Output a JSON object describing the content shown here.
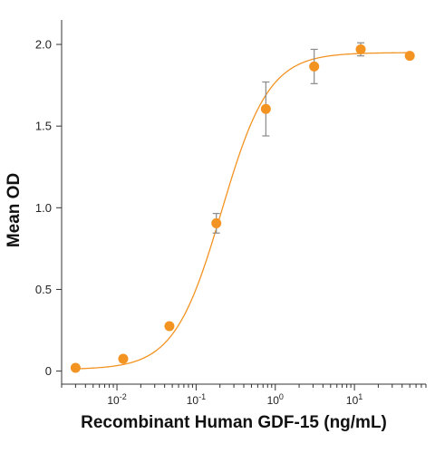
{
  "chart_data": {
    "type": "scatter",
    "xlabel": "Recombinant Human GDF-15 (ng/mL)",
    "ylabel": "Mean OD",
    "x_scale": "log",
    "xlim": [
      0.002,
      80
    ],
    "ylim": [
      -0.08,
      2.15
    ],
    "y_ticks": [
      {
        "value": 0,
        "label": "0"
      },
      {
        "value": 0.5,
        "label": "0.5"
      },
      {
        "value": 1.0,
        "label": "1.0"
      },
      {
        "value": 1.5,
        "label": "1.5"
      },
      {
        "value": 2.0,
        "label": "2.0"
      }
    ],
    "x_ticks": [
      {
        "value": 0.01,
        "base": "10",
        "exp": "-2"
      },
      {
        "value": 0.1,
        "base": "10",
        "exp": "-1"
      },
      {
        "value": 1,
        "base": "10",
        "exp": "0"
      },
      {
        "value": 10,
        "base": "10",
        "exp": "1"
      }
    ],
    "grid": false,
    "legend": "none",
    "colors": {
      "marker": "#f39322",
      "curve": "#f39322",
      "error_bar": "#8a8a8a"
    },
    "points": [
      {
        "x": 0.003,
        "y": 0.02
      },
      {
        "x": 0.012,
        "y": 0.075
      },
      {
        "x": 0.046,
        "y": 0.275
      },
      {
        "x": 0.18,
        "y": 0.905,
        "err": 0.06
      },
      {
        "x": 0.76,
        "y": 1.605,
        "err": 0.165
      },
      {
        "x": 3.1,
        "y": 1.865,
        "err": 0.105
      },
      {
        "x": 12,
        "y": 1.97,
        "err": 0.04
      },
      {
        "x": 50,
        "y": 1.93
      }
    ],
    "fit": {
      "bottom": 0.01,
      "top": 1.95,
      "ec50": 0.21,
      "hill": 1.45
    }
  }
}
